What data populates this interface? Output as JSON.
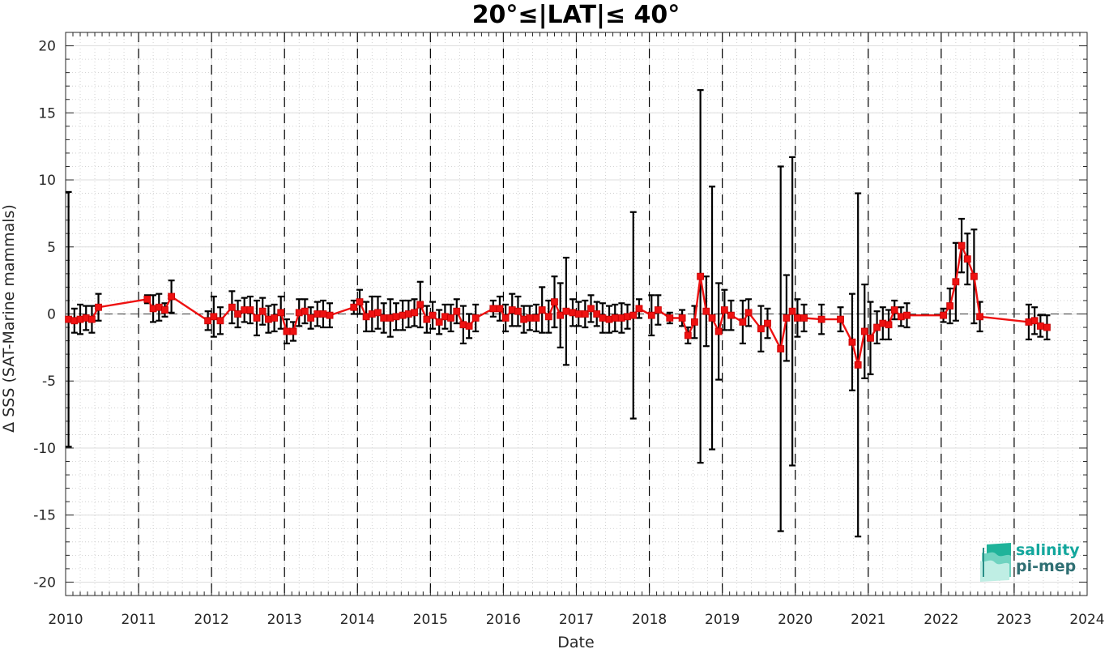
{
  "chart_data": {
    "type": "line",
    "title": "20°≤|LAT|≤ 40°",
    "xlabel": "Date",
    "ylabel": "Δ SSS (SAT-Marine mammals)",
    "xlim": [
      2010,
      2024
    ],
    "ylim": [
      -21,
      21
    ],
    "x_ticks": [
      "2010",
      "2011",
      "2012",
      "2013",
      "2014",
      "2015",
      "2016",
      "2017",
      "2018",
      "2019",
      "2020",
      "2021",
      "2022",
      "2023",
      "2024"
    ],
    "y_ticks": [
      -20,
      -15,
      -10,
      -5,
      0,
      5,
      10,
      15,
      20
    ],
    "grid": true,
    "minor_grid": true,
    "year_separators": "dashed vertical line at each year boundary",
    "zero_line": "dashed horizontal line at 0",
    "series": [
      {
        "color": "#ee1111",
        "marker": "square",
        "error_bar_color": "#000000",
        "points": [
          {
            "x": 2010.04,
            "y": -0.4,
            "err": 9.5
          },
          {
            "x": 2010.12,
            "y": -0.5,
            "err": 0.9
          },
          {
            "x": 2010.2,
            "y": -0.4,
            "err": 1.1
          },
          {
            "x": 2010.28,
            "y": -0.3,
            "err": 0.9
          },
          {
            "x": 2010.36,
            "y": -0.4,
            "err": 1.0
          },
          {
            "x": 2010.45,
            "y": 0.5,
            "err": 1.0
          },
          {
            "x": 2011.12,
            "y": 1.1,
            "err": 0.3
          },
          {
            "x": 2011.2,
            "y": 0.4,
            "err": 1.0
          },
          {
            "x": 2011.28,
            "y": 0.5,
            "err": 1.0
          },
          {
            "x": 2011.36,
            "y": 0.3,
            "err": 0.5
          },
          {
            "x": 2011.45,
            "y": 1.3,
            "err": 1.2
          },
          {
            "x": 2011.95,
            "y": -0.5,
            "err": 0.7
          },
          {
            "x": 2012.03,
            "y": -0.2,
            "err": 1.5
          },
          {
            "x": 2012.12,
            "y": -0.5,
            "err": 1.0
          },
          {
            "x": 2012.28,
            "y": 0.5,
            "err": 1.2
          },
          {
            "x": 2012.36,
            "y": 0.0,
            "err": 1.0
          },
          {
            "x": 2012.45,
            "y": 0.3,
            "err": 0.9
          },
          {
            "x": 2012.53,
            "y": 0.3,
            "err": 1.0
          },
          {
            "x": 2012.62,
            "y": -0.3,
            "err": 1.3
          },
          {
            "x": 2012.7,
            "y": 0.2,
            "err": 1.0
          },
          {
            "x": 2012.78,
            "y": -0.4,
            "err": 1.0
          },
          {
            "x": 2012.86,
            "y": -0.3,
            "err": 1.0
          },
          {
            "x": 2012.95,
            "y": 0.1,
            "err": 1.2
          },
          {
            "x": 2013.03,
            "y": -1.3,
            "err": 0.9
          },
          {
            "x": 2013.12,
            "y": -1.3,
            "err": 0.7
          },
          {
            "x": 2013.2,
            "y": 0.1,
            "err": 1.0
          },
          {
            "x": 2013.28,
            "y": 0.2,
            "err": 0.9
          },
          {
            "x": 2013.36,
            "y": -0.3,
            "err": 0.8
          },
          {
            "x": 2013.45,
            "y": 0.0,
            "err": 0.9
          },
          {
            "x": 2013.53,
            "y": 0.0,
            "err": 1.0
          },
          {
            "x": 2013.62,
            "y": -0.1,
            "err": 0.9
          },
          {
            "x": 2013.95,
            "y": 0.5,
            "err": 0.5
          },
          {
            "x": 2014.03,
            "y": 0.9,
            "err": 0.9
          },
          {
            "x": 2014.12,
            "y": -0.2,
            "err": 1.1
          },
          {
            "x": 2014.2,
            "y": 0.0,
            "err": 1.3
          },
          {
            "x": 2014.28,
            "y": 0.1,
            "err": 1.2
          },
          {
            "x": 2014.36,
            "y": -0.3,
            "err": 1.1
          },
          {
            "x": 2014.45,
            "y": -0.3,
            "err": 1.4
          },
          {
            "x": 2014.53,
            "y": -0.2,
            "err": 1.0
          },
          {
            "x": 2014.62,
            "y": -0.1,
            "err": 1.1
          },
          {
            "x": 2014.7,
            "y": 0.0,
            "err": 1.0
          },
          {
            "x": 2014.78,
            "y": 0.1,
            "err": 1.0
          },
          {
            "x": 2014.86,
            "y": 0.7,
            "err": 1.7
          },
          {
            "x": 2014.95,
            "y": -0.4,
            "err": 1.0
          },
          {
            "x": 2015.03,
            "y": -0.1,
            "err": 1.0
          },
          {
            "x": 2015.12,
            "y": -0.6,
            "err": 0.9
          },
          {
            "x": 2015.2,
            "y": -0.2,
            "err": 0.9
          },
          {
            "x": 2015.28,
            "y": -0.3,
            "err": 1.0
          },
          {
            "x": 2015.36,
            "y": 0.2,
            "err": 0.9
          },
          {
            "x": 2015.45,
            "y": -0.8,
            "err": 1.4
          },
          {
            "x": 2015.53,
            "y": -0.9,
            "err": 0.9
          },
          {
            "x": 2015.62,
            "y": -0.3,
            "err": 1.0
          },
          {
            "x": 2015.86,
            "y": 0.4,
            "err": 0.6
          },
          {
            "x": 2015.95,
            "y": 0.4,
            "err": 0.9
          },
          {
            "x": 2016.03,
            "y": -0.3,
            "err": 1.0
          },
          {
            "x": 2016.12,
            "y": 0.3,
            "err": 1.2
          },
          {
            "x": 2016.2,
            "y": 0.2,
            "err": 1.1
          },
          {
            "x": 2016.28,
            "y": -0.4,
            "err": 1.0
          },
          {
            "x": 2016.36,
            "y": -0.3,
            "err": 0.9
          },
          {
            "x": 2016.45,
            "y": -0.3,
            "err": 1.0
          },
          {
            "x": 2016.53,
            "y": 0.3,
            "err": 1.7
          },
          {
            "x": 2016.62,
            "y": -0.2,
            "err": 1.2
          },
          {
            "x": 2016.7,
            "y": 0.9,
            "err": 1.9
          },
          {
            "x": 2016.78,
            "y": -0.1,
            "err": 2.4
          },
          {
            "x": 2016.86,
            "y": 0.2,
            "err": 4.0
          },
          {
            "x": 2016.95,
            "y": 0.1,
            "err": 1.0
          },
          {
            "x": 2017.03,
            "y": 0.0,
            "err": 0.9
          },
          {
            "x": 2017.12,
            "y": 0.0,
            "err": 1.0
          },
          {
            "x": 2017.2,
            "y": 0.4,
            "err": 1.0
          },
          {
            "x": 2017.28,
            "y": 0.0,
            "err": 0.9
          },
          {
            "x": 2017.36,
            "y": -0.3,
            "err": 1.1
          },
          {
            "x": 2017.45,
            "y": -0.4,
            "err": 1.0
          },
          {
            "x": 2017.53,
            "y": -0.3,
            "err": 1.0
          },
          {
            "x": 2017.62,
            "y": -0.3,
            "err": 1.1
          },
          {
            "x": 2017.7,
            "y": -0.2,
            "err": 0.9
          },
          {
            "x": 2017.78,
            "y": -0.1,
            "err": 7.7
          },
          {
            "x": 2017.86,
            "y": 0.4,
            "err": 0.7
          },
          {
            "x": 2018.03,
            "y": -0.1,
            "err": 1.5
          },
          {
            "x": 2018.12,
            "y": 0.3,
            "err": 1.1
          },
          {
            "x": 2018.28,
            "y": -0.3,
            "err": 0.4
          },
          {
            "x": 2018.45,
            "y": -0.3,
            "err": 0.6
          },
          {
            "x": 2018.53,
            "y": -1.6,
            "err": 0.6
          },
          {
            "x": 2018.62,
            "y": -0.6,
            "err": 1.2
          },
          {
            "x": 2018.7,
            "y": 2.8,
            "err": 13.9
          },
          {
            "x": 2018.78,
            "y": 0.2,
            "err": 2.6
          },
          {
            "x": 2018.86,
            "y": -0.3,
            "err": 9.8
          },
          {
            "x": 2018.95,
            "y": -1.3,
            "err": 3.6
          },
          {
            "x": 2019.03,
            "y": 0.3,
            "err": 1.5
          },
          {
            "x": 2019.12,
            "y": -0.1,
            "err": 1.1
          },
          {
            "x": 2019.28,
            "y": -0.6,
            "err": 1.6
          },
          {
            "x": 2019.36,
            "y": 0.1,
            "err": 1.0
          },
          {
            "x": 2019.53,
            "y": -1.1,
            "err": 1.7
          },
          {
            "x": 2019.62,
            "y": -0.7,
            "err": 1.1
          },
          {
            "x": 2019.8,
            "y": -2.6,
            "err": 13.6
          },
          {
            "x": 2019.88,
            "y": -0.3,
            "err": 3.2
          },
          {
            "x": 2019.96,
            "y": 0.2,
            "err": 11.5
          },
          {
            "x": 2020.03,
            "y": -0.3,
            "err": 1.4
          },
          {
            "x": 2020.12,
            "y": -0.3,
            "err": 1.0
          },
          {
            "x": 2020.36,
            "y": -0.4,
            "err": 1.1
          },
          {
            "x": 2020.62,
            "y": -0.4,
            "err": 0.9
          },
          {
            "x": 2020.78,
            "y": -2.1,
            "err": 3.6
          },
          {
            "x": 2020.86,
            "y": -3.8,
            "err": 12.8
          },
          {
            "x": 2020.95,
            "y": -1.3,
            "err": 3.5
          },
          {
            "x": 2021.03,
            "y": -1.8,
            "err": 2.7
          },
          {
            "x": 2021.12,
            "y": -1.0,
            "err": 1.2
          },
          {
            "x": 2021.2,
            "y": -0.7,
            "err": 1.2
          },
          {
            "x": 2021.28,
            "y": -0.8,
            "err": 1.1
          },
          {
            "x": 2021.36,
            "y": 0.3,
            "err": 0.7
          },
          {
            "x": 2021.45,
            "y": -0.2,
            "err": 0.7
          },
          {
            "x": 2021.53,
            "y": -0.1,
            "err": 0.9
          },
          {
            "x": 2022.03,
            "y": -0.1,
            "err": 0.5
          },
          {
            "x": 2022.12,
            "y": 0.6,
            "err": 1.3
          },
          {
            "x": 2022.2,
            "y": 2.4,
            "err": 2.9
          },
          {
            "x": 2022.28,
            "y": 5.1,
            "err": 2.0
          },
          {
            "x": 2022.36,
            "y": 4.1,
            "err": 1.9
          },
          {
            "x": 2022.45,
            "y": 2.8,
            "err": 3.5
          },
          {
            "x": 2022.53,
            "y": -0.2,
            "err": 1.1
          },
          {
            "x": 2023.2,
            "y": -0.6,
            "err": 1.3
          },
          {
            "x": 2023.28,
            "y": -0.5,
            "err": 1.0
          },
          {
            "x": 2023.36,
            "y": -0.9,
            "err": 0.8
          },
          {
            "x": 2023.45,
            "y": -1.0,
            "err": 0.9
          }
        ]
      }
    ]
  },
  "logo": {
    "line1": "salinity",
    "line2": "pi-mep",
    "colors": [
      "#14a79d",
      "#2f6f73"
    ]
  }
}
